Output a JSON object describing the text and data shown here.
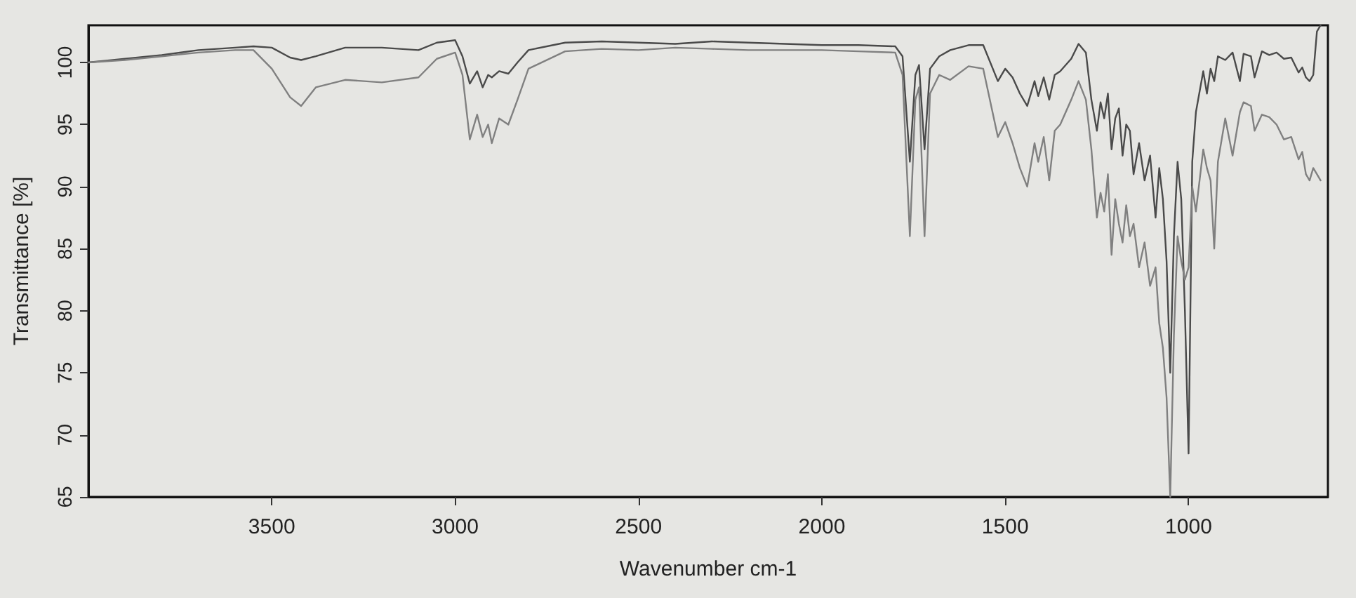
{
  "chart_data": {
    "type": "line",
    "xlabel": "Wavenumber cm-1",
    "ylabel": "Transmittance [%]",
    "x": [
      4000,
      3900,
      3800,
      3700,
      3600,
      3550,
      3500,
      3450,
      3420,
      3380,
      3300,
      3200,
      3100,
      3050,
      3000,
      2980,
      2960,
      2940,
      2925,
      2910,
      2900,
      2880,
      2855,
      2830,
      2800,
      2700,
      2600,
      2500,
      2400,
      2300,
      2200,
      2100,
      2000,
      1900,
      1800,
      1780,
      1760,
      1745,
      1735,
      1720,
      1705,
      1680,
      1650,
      1600,
      1560,
      1520,
      1500,
      1480,
      1460,
      1440,
      1420,
      1410,
      1395,
      1380,
      1365,
      1350,
      1320,
      1300,
      1280,
      1265,
      1250,
      1240,
      1230,
      1220,
      1210,
      1200,
      1190,
      1180,
      1170,
      1160,
      1150,
      1135,
      1120,
      1105,
      1090,
      1080,
      1070,
      1060,
      1050,
      1040,
      1030,
      1020,
      1010,
      1000,
      990,
      980,
      960,
      950,
      940,
      930,
      920,
      900,
      880,
      860,
      850,
      830,
      820,
      800,
      780,
      760,
      740,
      720,
      700,
      690,
      680,
      670,
      660,
      650,
      640
    ],
    "series": [
      {
        "color": "#4a4a4a",
        "values": [
          100,
          100.3,
          100.6,
          101,
          101.2,
          101.3,
          101.2,
          100.4,
          100.2,
          100.5,
          101.2,
          101.2,
          101,
          101.6,
          101.8,
          100.5,
          98.3,
          99.3,
          98,
          99,
          98.8,
          99.3,
          99.1,
          100,
          101,
          101.6,
          101.7,
          101.6,
          101.5,
          101.7,
          101.6,
          101.5,
          101.4,
          101.4,
          101.3,
          100.5,
          92,
          99,
          99.8,
          93,
          99.5,
          100.5,
          101,
          101.4,
          101.4,
          98.5,
          99.5,
          98.8,
          97.5,
          96.5,
          98.5,
          97.3,
          98.8,
          97,
          99,
          99.3,
          100.3,
          101.5,
          100.8,
          97,
          94.5,
          96.8,
          95.5,
          97.5,
          93,
          95.5,
          96.3,
          92.5,
          95,
          94.5,
          91,
          93.5,
          90.5,
          92.5,
          87.5,
          91.5,
          89,
          84,
          75,
          86,
          92,
          89,
          80,
          68.5,
          92,
          96,
          99.3,
          97.5,
          99.5,
          98.5,
          100.5,
          100.2,
          100.8,
          98.5,
          100.7,
          100.5,
          98.8,
          100.9,
          100.6,
          100.8,
          100.3,
          100.4,
          99.2,
          99.6,
          98.8,
          98.5,
          99,
          102.5,
          103
        ]
      },
      {
        "color": "#808080",
        "values": [
          100,
          100.2,
          100.5,
          100.8,
          101,
          101,
          99.5,
          97.2,
          96.5,
          98,
          98.6,
          98.4,
          98.8,
          100.3,
          100.8,
          99,
          93.8,
          95.8,
          94,
          95,
          93.5,
          95.5,
          95,
          97,
          99.5,
          100.9,
          101.1,
          101,
          101.2,
          101.1,
          101,
          101,
          101,
          100.9,
          100.8,
          99,
          86,
          97,
          98,
          86,
          97.5,
          99,
          98.6,
          99.7,
          99.5,
          94,
          95.2,
          93.5,
          91.5,
          90,
          93.5,
          92,
          94,
          90.5,
          94.5,
          95,
          97,
          98.5,
          97,
          93,
          87.5,
          89.5,
          88,
          91,
          84.5,
          89,
          87,
          85.5,
          88.5,
          86,
          87,
          83.5,
          85.5,
          82,
          83.5,
          79,
          77,
          73,
          65,
          78,
          86,
          84,
          82.5,
          83.5,
          90,
          88,
          93,
          91.5,
          90.5,
          85,
          92,
          95.5,
          92.5,
          96,
          96.8,
          96.5,
          94.5,
          95.8,
          95.6,
          95,
          93.8,
          94,
          92.2,
          92.8,
          91,
          90.5,
          91.5,
          91,
          90.5
        ]
      }
    ],
    "xlim": [
      4000,
      620
    ],
    "xticks": [
      3500,
      3000,
      2500,
      2000,
      1500,
      1000
    ],
    "ylim": [
      65,
      103
    ],
    "yticks": [
      65,
      70,
      75,
      80,
      85,
      90,
      95,
      100
    ],
    "grid": false,
    "legend": false,
    "marker": "none",
    "line_style": "solid"
  }
}
